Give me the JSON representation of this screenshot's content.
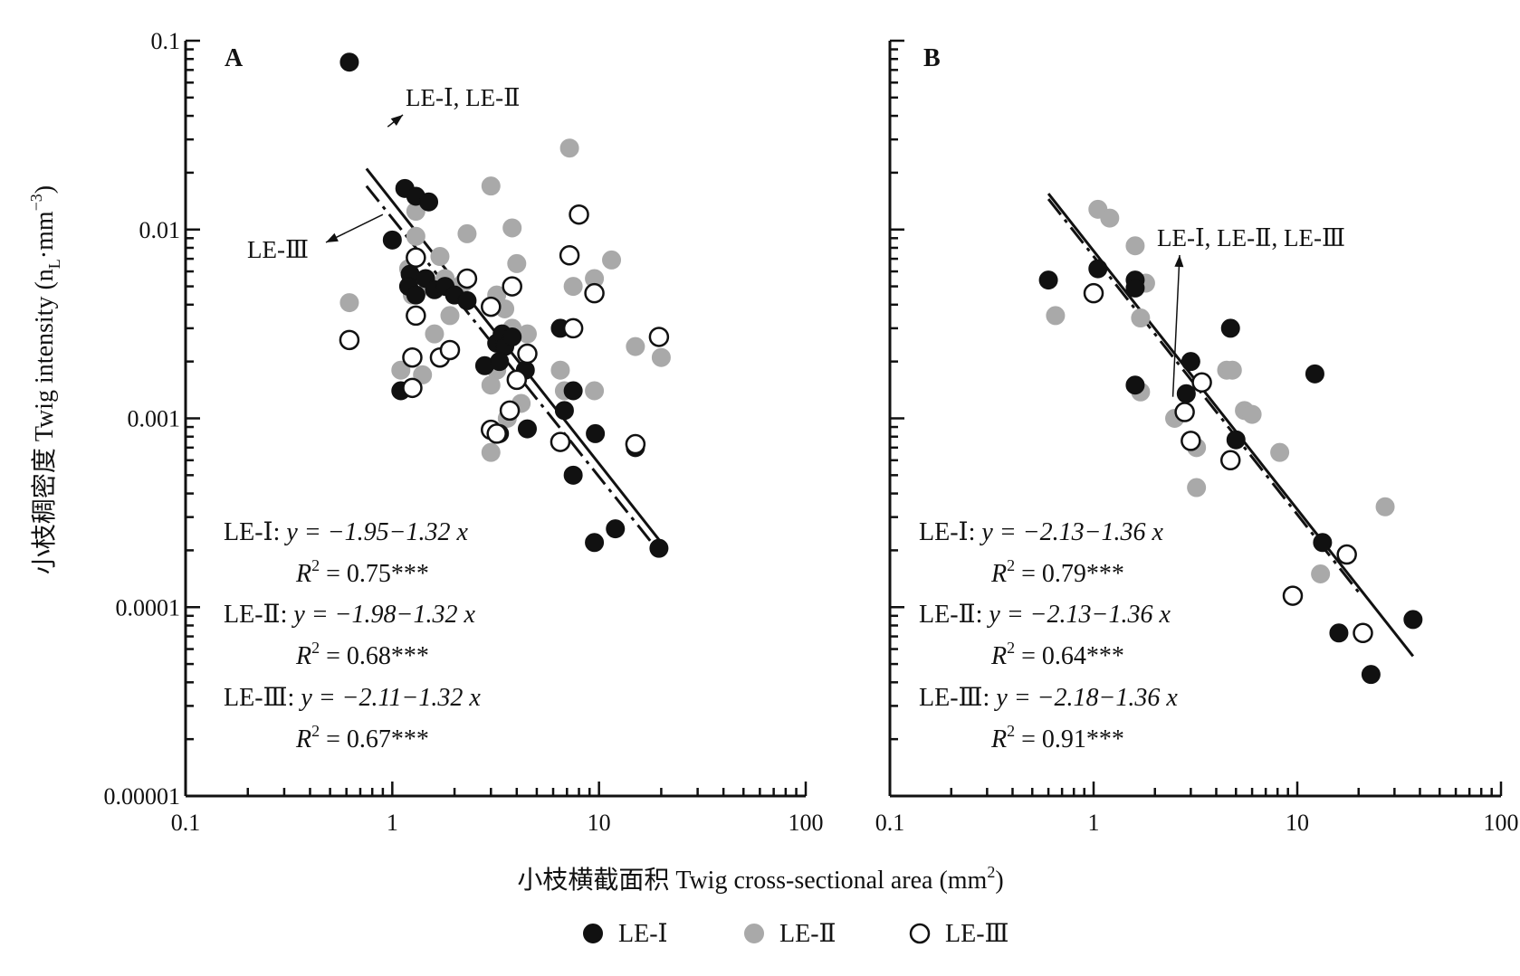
{
  "figure": {
    "xlabel": "小枝横截面积 Twig cross-sectional area (mm²)",
    "ylabel": "小枝稠密度 Twig intensity (n_L·mm⁻³)",
    "ylabel_main": "小枝稠密度 Twig intensity (n",
    "ylabel_sub": "L",
    "ylabel_mid": "·mm",
    "ylabel_sup": "−3",
    "ylabel_end": ")",
    "xlabel_main": "小枝横截面积 Twig cross-sectional area (mm",
    "xlabel_sup": "2",
    "xlabel_end": ")"
  },
  "legend": [
    {
      "label": "LE-Ⅰ",
      "style": "black"
    },
    {
      "label": "LE-Ⅱ",
      "style": "gray"
    },
    {
      "label": "LE-Ⅲ",
      "style": "open"
    }
  ],
  "colors": {
    "black": "#111111",
    "gray": "#a9a9a9",
    "open": "#ffffff"
  },
  "chart_data": [
    {
      "type": "scatter",
      "panel": "A",
      "x_scale": "log",
      "y_scale": "log",
      "xlim": [
        0.1,
        100
      ],
      "ylim": [
        1e-05,
        0.1
      ],
      "x_tick_labels": [
        "0.1",
        "1",
        "10",
        "100"
      ],
      "y_tick_labels": [
        "0.1",
        "0.01",
        "0.001",
        "0.0001",
        "0.00001"
      ],
      "annotations": [
        {
          "text": "LE-Ⅰ, LE-Ⅱ",
          "points_to": [
            0.95,
            0.035
          ]
        },
        {
          "text": "LE-Ⅲ",
          "points_to": [
            0.9,
            0.012
          ]
        }
      ],
      "equations": [
        {
          "label": "LE-Ⅰ:",
          "eq": "y = −1.95−1.32 x",
          "r2": "0.75***"
        },
        {
          "label": "LE-Ⅱ:",
          "eq": "y = −1.98−1.32 x",
          "r2": "0.68***"
        },
        {
          "label": "LE-Ⅲ:",
          "eq": "y = −2.11−1.32 x",
          "r2": "0.67***"
        }
      ],
      "fit_lines": [
        {
          "name": "LE-Ⅰ, LE-Ⅱ",
          "style": "solid",
          "x": [
            0.75,
            20
          ],
          "y": [
            0.021,
            0.00022
          ]
        },
        {
          "name": "LE-Ⅲ",
          "style": "dashdot",
          "x": [
            0.75,
            20
          ],
          "y": [
            0.017,
            0.00019
          ]
        }
      ],
      "series": [
        {
          "name": "LE-Ⅰ",
          "style": "black",
          "points": [
            [
              0.62,
              0.077
            ],
            [
              1.15,
              0.0165
            ],
            [
              1.3,
              0.015
            ],
            [
              1.5,
              0.014
            ],
            [
              1.0,
              0.0088
            ],
            [
              1.22,
              0.0058
            ],
            [
              1.2,
              0.005
            ],
            [
              1.45,
              0.0055
            ],
            [
              1.6,
              0.0048
            ],
            [
              1.8,
              0.005
            ],
            [
              2.0,
              0.0045
            ],
            [
              2.3,
              0.0042
            ],
            [
              1.3,
              0.0045
            ],
            [
              1.1,
              0.0014
            ],
            [
              2.8,
              0.0019
            ],
            [
              3.2,
              0.0025
            ],
            [
              3.4,
              0.0028
            ],
            [
              3.5,
              0.0024
            ],
            [
              3.8,
              0.0027
            ],
            [
              3.3,
              0.002
            ],
            [
              4.4,
              0.0018
            ],
            [
              4.5,
              0.00088
            ],
            [
              3.3,
              0.00083
            ],
            [
              6.5,
              0.003
            ],
            [
              7.5,
              0.0014
            ],
            [
              6.8,
              0.0011
            ],
            [
              9.6,
              0.00083
            ],
            [
              7.5,
              0.0005
            ],
            [
              12.0,
              0.00026
            ],
            [
              9.5,
              0.00022
            ],
            [
              15.0,
              0.0007
            ],
            [
              19.5,
              0.000205
            ]
          ]
        },
        {
          "name": "LE-Ⅱ",
          "style": "gray",
          "points": [
            [
              0.62,
              0.0041
            ],
            [
              1.3,
              0.0125
            ],
            [
              1.3,
              0.0092
            ],
            [
              1.2,
              0.0062
            ],
            [
              1.25,
              0.0045
            ],
            [
              1.5,
              0.005
            ],
            [
              1.7,
              0.0072
            ],
            [
              1.8,
              0.0055
            ],
            [
              1.9,
              0.0035
            ],
            [
              1.6,
              0.0028
            ],
            [
              1.4,
              0.0017
            ],
            [
              1.1,
              0.0018
            ],
            [
              2.2,
              0.0052
            ],
            [
              2.3,
              0.0095
            ],
            [
              3.0,
              0.017
            ],
            [
              3.8,
              0.0102
            ],
            [
              4.0,
              0.0066
            ],
            [
              3.2,
              0.0045
            ],
            [
              3.5,
              0.0038
            ],
            [
              3.8,
              0.003
            ],
            [
              4.5,
              0.0028
            ],
            [
              3.2,
              0.0018
            ],
            [
              3.0,
              0.0015
            ],
            [
              4.2,
              0.0012
            ],
            [
              3.6,
              0.001
            ],
            [
              3.0,
              0.00066
            ],
            [
              6.5,
              0.0018
            ],
            [
              6.8,
              0.0014
            ],
            [
              7.2,
              0.027
            ],
            [
              7.5,
              0.005
            ],
            [
              9.5,
              0.0055
            ],
            [
              11.5,
              0.0069
            ],
            [
              9.5,
              0.0014
            ],
            [
              15.0,
              0.0024
            ],
            [
              20.0,
              0.0021
            ]
          ]
        },
        {
          "name": "LE-Ⅲ",
          "style": "open",
          "points": [
            [
              0.62,
              0.0026
            ],
            [
              1.3,
              0.0071
            ],
            [
              1.3,
              0.0035
            ],
            [
              1.25,
              0.0021
            ],
            [
              1.25,
              0.00145
            ],
            [
              1.7,
              0.0021
            ],
            [
              1.9,
              0.0023
            ],
            [
              2.3,
              0.0055
            ],
            [
              3.0,
              0.0039
            ],
            [
              3.8,
              0.005
            ],
            [
              4.5,
              0.0022
            ],
            [
              4.0,
              0.0016
            ],
            [
              3.7,
              0.0011
            ],
            [
              3.0,
              0.00087
            ],
            [
              3.2,
              0.00083
            ],
            [
              6.5,
              0.00075
            ],
            [
              7.2,
              0.0073
            ],
            [
              7.5,
              0.003
            ],
            [
              8.0,
              0.012
            ],
            [
              9.5,
              0.0046
            ],
            [
              15.0,
              0.00073
            ],
            [
              19.5,
              0.0027
            ]
          ]
        }
      ]
    },
    {
      "type": "scatter",
      "panel": "B",
      "x_scale": "log",
      "y_scale": "log",
      "xlim": [
        0.1,
        100
      ],
      "ylim": [
        1e-05,
        0.1
      ],
      "x_tick_labels": [
        "0.1",
        "1",
        "10",
        "100"
      ],
      "annotations": [
        {
          "text": "LE-Ⅰ, LE-Ⅱ, LE-Ⅲ",
          "points_to": [
            2.45,
            0.0013
          ]
        }
      ],
      "equations": [
        {
          "label": "LE-Ⅰ:",
          "eq": "y = −2.13−1.36 x",
          "r2": "0.79***"
        },
        {
          "label": "LE-Ⅱ:",
          "eq": "y = −2.13−1.36 x",
          "r2": "0.64***"
        },
        {
          "label": "LE-Ⅲ:",
          "eq": "y = −2.18−1.36 x",
          "r2": "0.91***"
        }
      ],
      "fit_lines": [
        {
          "name": "LE-Ⅰ, LE-Ⅱ, LE-Ⅲ",
          "style": "solid",
          "x": [
            0.6,
            37
          ],
          "y": [
            0.0155,
            5.5e-05
          ]
        },
        {
          "name": "LE-Ⅲ",
          "style": "dashdot",
          "x": [
            0.6,
            20
          ],
          "y": [
            0.0145,
            0.00012
          ]
        }
      ],
      "series": [
        {
          "name": "LE-Ⅰ",
          "style": "black",
          "points": [
            [
              0.6,
              0.0054
            ],
            [
              1.05,
              0.0062
            ],
            [
              1.6,
              0.0054
            ],
            [
              1.6,
              0.0049
            ],
            [
              1.6,
              0.0015
            ],
            [
              3.0,
              0.002
            ],
            [
              2.85,
              0.00135
            ],
            [
              4.7,
              0.003
            ],
            [
              5.0,
              0.00077
            ],
            [
              12.2,
              0.00172
            ],
            [
              13.3,
              0.00022
            ],
            [
              16.0,
              7.3e-05
            ],
            [
              23.0,
              4.4e-05
            ],
            [
              37.0,
              8.6e-05
            ]
          ]
        },
        {
          "name": "LE-Ⅱ",
          "style": "gray",
          "points": [
            [
              0.65,
              0.0035
            ],
            [
              1.05,
              0.0128
            ],
            [
              1.2,
              0.0115
            ],
            [
              1.6,
              0.0082
            ],
            [
              1.7,
              0.0034
            ],
            [
              1.8,
              0.0052
            ],
            [
              1.7,
              0.00138
            ],
            [
              2.5,
              0.001
            ],
            [
              3.2,
              0.0007
            ],
            [
              3.2,
              0.00043
            ],
            [
              4.5,
              0.0018
            ],
            [
              4.8,
              0.0018
            ],
            [
              5.5,
              0.0011
            ],
            [
              6.0,
              0.00105
            ],
            [
              8.2,
              0.00066
            ],
            [
              13.0,
              0.00015
            ],
            [
              27.0,
              0.00034
            ]
          ]
        },
        {
          "name": "LE-Ⅲ",
          "style": "open",
          "points": [
            [
              1.0,
              0.0046
            ],
            [
              2.8,
              0.00108
            ],
            [
              3.0,
              0.00076
            ],
            [
              3.4,
              0.00155
            ],
            [
              4.7,
              0.0006
            ],
            [
              9.5,
              0.000115
            ],
            [
              17.5,
              0.00019
            ],
            [
              21.0,
              7.3e-05
            ]
          ]
        }
      ]
    }
  ]
}
